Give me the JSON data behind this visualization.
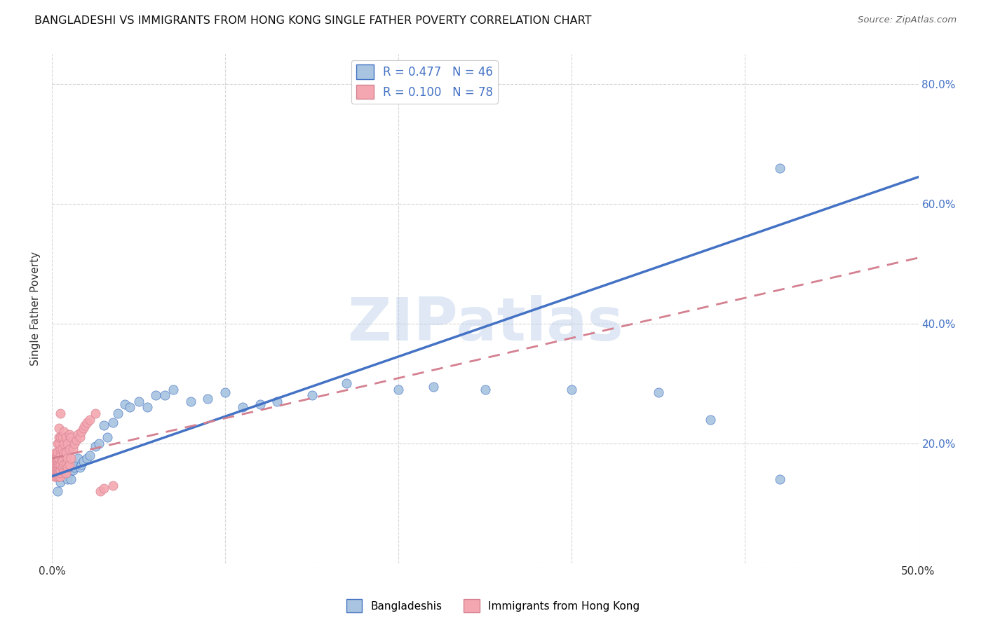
{
  "title": "BANGLADESHI VS IMMIGRANTS FROM HONG KONG SINGLE FATHER POVERTY CORRELATION CHART",
  "source": "Source: ZipAtlas.com",
  "ylabel": "Single Father Poverty",
  "x_min": 0.0,
  "x_max": 0.5,
  "y_min": 0.0,
  "y_max": 0.85,
  "x_ticks": [
    0.0,
    0.1,
    0.2,
    0.3,
    0.4,
    0.5
  ],
  "x_tick_labels": [
    "0.0%",
    "",
    "",
    "",
    "",
    "50.0%"
  ],
  "y_ticks": [
    0.0,
    0.2,
    0.4,
    0.6,
    0.8
  ],
  "y_tick_labels": [
    "",
    "20.0%",
    "40.0%",
    "60.0%",
    "80.0%"
  ],
  "bangladeshi_color": "#a8c4e0",
  "hk_color": "#f4a7b0",
  "trend_blue": "#4472c4",
  "trend_pink": "#d48090",
  "R_bangladeshi": 0.477,
  "N_bangladeshi": 46,
  "R_hk": 0.1,
  "N_hk": 78,
  "watermark": "ZIPatlas",
  "legend_label_1": "Bangladeshis",
  "legend_label_2": "Immigrants from Hong Kong",
  "blue_line_x0": 0.0,
  "blue_line_y0": 0.145,
  "blue_line_x1": 0.5,
  "blue_line_y1": 0.645,
  "pink_line_x0": 0.0,
  "pink_line_y0": 0.175,
  "pink_line_x1": 0.5,
  "pink_line_y1": 0.51,
  "bangladeshi_x": [
    0.003,
    0.005,
    0.007,
    0.008,
    0.009,
    0.01,
    0.01,
    0.011,
    0.012,
    0.013,
    0.014,
    0.015,
    0.016,
    0.017,
    0.018,
    0.02,
    0.022,
    0.025,
    0.027,
    0.03,
    0.032,
    0.035,
    0.038,
    0.042,
    0.045,
    0.05,
    0.055,
    0.06,
    0.065,
    0.07,
    0.08,
    0.09,
    0.1,
    0.11,
    0.12,
    0.13,
    0.15,
    0.17,
    0.2,
    0.22,
    0.25,
    0.3,
    0.35,
    0.38,
    0.42,
    0.42
  ],
  "bangladeshi_y": [
    0.12,
    0.135,
    0.145,
    0.155,
    0.14,
    0.16,
    0.15,
    0.14,
    0.155,
    0.16,
    0.165,
    0.175,
    0.16,
    0.165,
    0.17,
    0.175,
    0.18,
    0.195,
    0.2,
    0.23,
    0.21,
    0.235,
    0.25,
    0.265,
    0.26,
    0.27,
    0.26,
    0.28,
    0.28,
    0.29,
    0.27,
    0.275,
    0.285,
    0.26,
    0.265,
    0.27,
    0.28,
    0.3,
    0.29,
    0.295,
    0.29,
    0.29,
    0.285,
    0.24,
    0.14,
    0.66
  ],
  "hk_x": [
    0.001,
    0.001,
    0.001,
    0.001,
    0.001,
    0.001,
    0.001,
    0.001,
    0.002,
    0.002,
    0.002,
    0.002,
    0.002,
    0.002,
    0.002,
    0.002,
    0.002,
    0.003,
    0.003,
    0.003,
    0.003,
    0.003,
    0.003,
    0.003,
    0.003,
    0.003,
    0.003,
    0.004,
    0.004,
    0.004,
    0.004,
    0.004,
    0.004,
    0.004,
    0.004,
    0.005,
    0.005,
    0.005,
    0.005,
    0.005,
    0.005,
    0.005,
    0.005,
    0.006,
    0.006,
    0.006,
    0.006,
    0.007,
    0.007,
    0.007,
    0.007,
    0.007,
    0.008,
    0.008,
    0.008,
    0.008,
    0.009,
    0.009,
    0.009,
    0.01,
    0.01,
    0.01,
    0.011,
    0.011,
    0.012,
    0.013,
    0.014,
    0.015,
    0.016,
    0.017,
    0.018,
    0.019,
    0.02,
    0.022,
    0.025,
    0.028,
    0.03,
    0.035
  ],
  "hk_y": [
    0.145,
    0.15,
    0.155,
    0.16,
    0.16,
    0.165,
    0.17,
    0.175,
    0.145,
    0.15,
    0.155,
    0.16,
    0.165,
    0.17,
    0.175,
    0.18,
    0.185,
    0.145,
    0.15,
    0.155,
    0.16,
    0.165,
    0.17,
    0.175,
    0.18,
    0.185,
    0.2,
    0.145,
    0.15,
    0.16,
    0.165,
    0.175,
    0.2,
    0.21,
    0.225,
    0.145,
    0.15,
    0.155,
    0.165,
    0.18,
    0.19,
    0.21,
    0.25,
    0.16,
    0.17,
    0.19,
    0.21,
    0.155,
    0.165,
    0.185,
    0.2,
    0.22,
    0.15,
    0.165,
    0.185,
    0.21,
    0.16,
    0.175,
    0.2,
    0.165,
    0.19,
    0.215,
    0.175,
    0.21,
    0.19,
    0.2,
    0.205,
    0.215,
    0.21,
    0.22,
    0.225,
    0.23,
    0.235,
    0.24,
    0.25,
    0.12,
    0.125,
    0.13
  ]
}
